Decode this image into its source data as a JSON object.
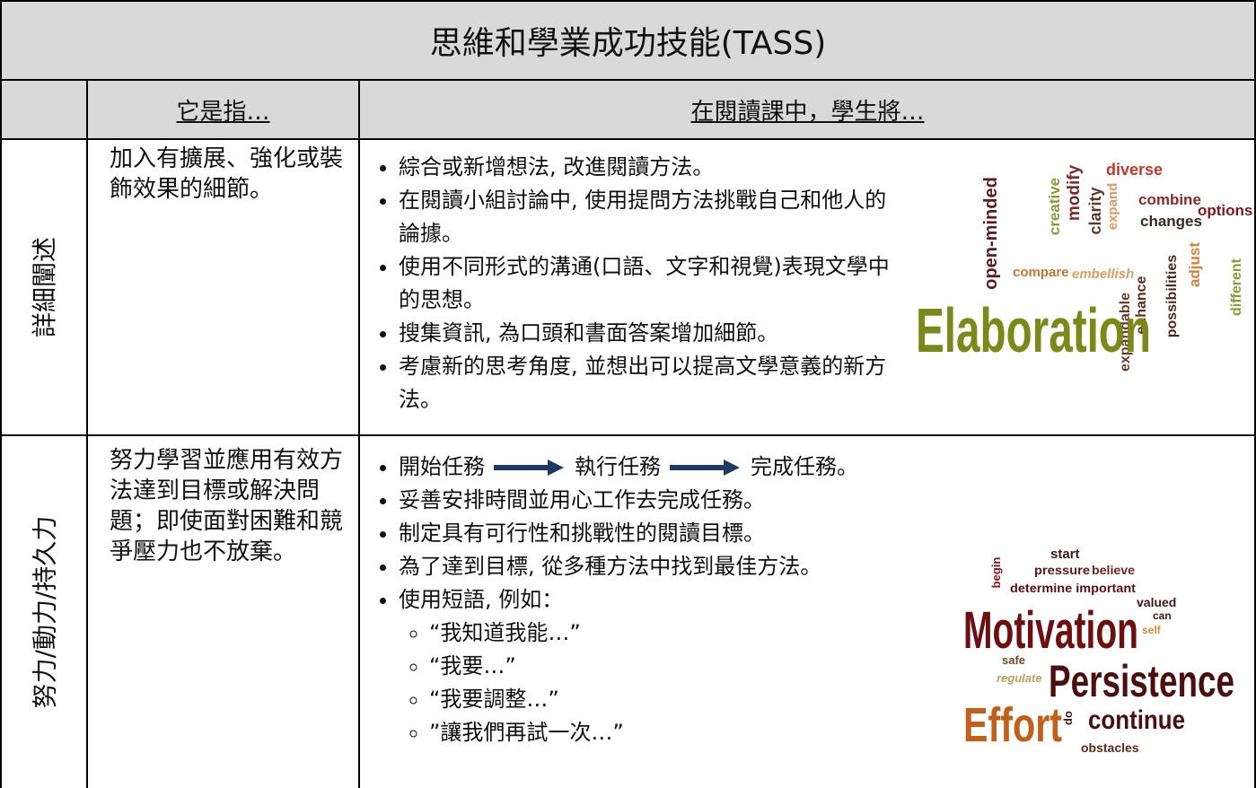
{
  "title": "思維和學業成功技能(TASS)",
  "table": {
    "header": [
      "它是指…",
      "在閱讀課中，學生將…"
    ],
    "rows": [
      {
        "label": "詳細闡述",
        "definition": "加入有擴展、強化或裝飾效果的細節。",
        "items": [
          "綜合或新增想法, 改進閱讀方法。",
          "在閱讀小組討論中, 使用提問方法挑戰自己和他人的論據。",
          "使用不同形式的溝通(口語、文字和視覺)表現文學中的思想。",
          "搜集資訊, 為口頭和書面答案增加細節。",
          "考慮新的思考角度, 並想出可以提高文學意義的新方法。"
        ],
        "word_cloud": [
          "open-minded",
          "creative",
          "modify",
          "clarity",
          "diverse",
          "expand",
          "combine",
          "changes",
          "options",
          "compare",
          "embellish",
          "enhance",
          "expandable",
          "possibilities",
          "adjust",
          "different",
          "Elaboration"
        ]
      },
      {
        "label": "努力/動力/持久力",
        "definition": "努力學習並應用有效方法達到目標或解決問題；即使面對困難和競爭壓力也不放棄。",
        "steps": [
          "開始任務",
          "執行任務",
          "完成任務。"
        ],
        "items": [
          "妥善安排時間並用心工作去完成任務。",
          "制定具有可行性和挑戰性的閱讀目標。",
          "為了達到目標, 從多種方法中找到最佳方法。",
          "使用短語, 例如："
        ],
        "sub_items": [
          "“我知道我能…”",
          "“我要…”",
          "“我要調整…”",
          "”讓我們再試一次…”"
        ],
        "word_cloud": [
          "begin",
          "start",
          "pressure",
          "believe",
          "determine important",
          "valued",
          "can",
          "self",
          "Motivation",
          "safe",
          "regulate",
          "Persistence",
          "Effort",
          "do",
          "continue",
          "obstacles"
        ]
      }
    ]
  }
}
